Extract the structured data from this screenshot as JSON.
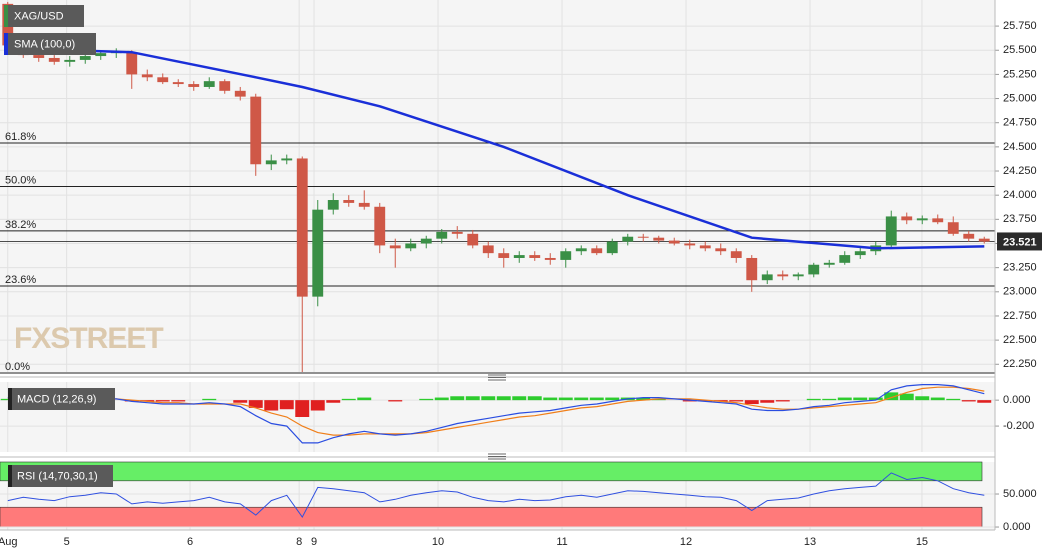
{
  "chart_data": [
    {
      "type": "candlestick",
      "title": "XAG/USD",
      "x": [
        0,
        1,
        2,
        3,
        4,
        5,
        6,
        7,
        8,
        9,
        10,
        11,
        12,
        13,
        14,
        15,
        16,
        17,
        18,
        19,
        20,
        21,
        22,
        23,
        24,
        25,
        26,
        27,
        28,
        29,
        30,
        31,
        32,
        33,
        34,
        35,
        36,
        37,
        38,
        39,
        40,
        41,
        42,
        43,
        44,
        45,
        46,
        47,
        48,
        49,
        50,
        51,
        52,
        53,
        54,
        55,
        56,
        57,
        58,
        59,
        60,
        61,
        62,
        63
      ],
      "open": [
        25.98,
        25.55,
        25.45,
        25.42,
        25.38,
        25.4,
        25.44,
        25.47,
        25.48,
        25.25,
        25.22,
        25.17,
        25.15,
        25.12,
        25.18,
        25.08,
        25.02,
        24.32,
        24.36,
        24.38,
        22.95,
        23.85,
        23.95,
        23.92,
        23.88,
        23.48,
        23.45,
        23.5,
        23.55,
        23.62,
        23.6,
        23.48,
        23.4,
        23.35,
        23.38,
        23.35,
        23.33,
        23.42,
        23.45,
        23.4,
        23.52,
        23.57,
        23.56,
        23.53,
        23.5,
        23.48,
        23.45,
        23.42,
        23.35,
        23.12,
        23.18,
        23.16,
        23.18,
        23.28,
        23.3,
        23.38,
        23.42,
        23.48,
        23.78,
        23.74,
        23.76,
        23.72,
        23.6,
        23.55
      ],
      "high": [
        26.0,
        25.58,
        25.5,
        25.45,
        25.44,
        25.47,
        25.5,
        25.52,
        25.5,
        25.3,
        25.26,
        25.2,
        25.18,
        25.22,
        25.2,
        25.12,
        25.05,
        24.42,
        24.42,
        24.4,
        23.95,
        24.02,
        24.0,
        24.05,
        23.92,
        23.55,
        23.55,
        23.58,
        23.65,
        23.68,
        23.64,
        23.52,
        23.45,
        23.42,
        23.42,
        23.4,
        23.45,
        23.48,
        23.48,
        23.55,
        23.6,
        23.6,
        23.58,
        23.56,
        23.54,
        23.52,
        23.5,
        23.45,
        23.38,
        23.22,
        23.22,
        23.2,
        23.3,
        23.33,
        23.42,
        23.46,
        23.52,
        23.84,
        23.82,
        23.79,
        23.8,
        23.78,
        23.63,
        23.57
      ],
      "low": [
        25.5,
        25.42,
        25.38,
        25.35,
        25.33,
        25.36,
        25.4,
        25.42,
        25.1,
        25.18,
        25.15,
        25.12,
        25.08,
        25.1,
        25.05,
        24.98,
        24.2,
        24.26,
        24.32,
        22.17,
        22.85,
        23.8,
        23.88,
        23.85,
        23.4,
        23.25,
        23.42,
        23.45,
        23.5,
        23.55,
        23.45,
        23.35,
        23.25,
        23.3,
        23.32,
        23.28,
        23.25,
        23.38,
        23.38,
        23.38,
        23.48,
        23.52,
        23.5,
        23.48,
        23.44,
        23.42,
        23.38,
        23.3,
        23.0,
        23.08,
        23.12,
        23.12,
        23.15,
        23.25,
        23.28,
        23.34,
        23.38,
        23.46,
        23.7,
        23.7,
        23.7,
        23.58,
        23.52,
        23.5
      ],
      "close": [
        25.55,
        25.45,
        25.42,
        25.38,
        25.4,
        25.44,
        25.47,
        25.48,
        25.25,
        25.22,
        25.17,
        25.15,
        25.12,
        25.18,
        25.08,
        25.02,
        24.32,
        24.36,
        24.38,
        22.95,
        23.85,
        23.95,
        23.92,
        23.88,
        23.48,
        23.45,
        23.5,
        23.55,
        23.62,
        23.6,
        23.48,
        23.4,
        23.35,
        23.38,
        23.35,
        23.33,
        23.42,
        23.45,
        23.4,
        23.52,
        23.57,
        23.56,
        23.53,
        23.5,
        23.48,
        23.45,
        23.42,
        23.35,
        23.12,
        23.18,
        23.16,
        23.18,
        23.28,
        23.3,
        23.38,
        23.42,
        23.48,
        23.78,
        23.74,
        23.76,
        23.72,
        23.6,
        23.55,
        23.52
      ],
      "up_color": "#3a8f46",
      "down_color": "#cf5847",
      "sma": {
        "name": "SMA (100,0)",
        "color": "#1a2fd8",
        "x": [
          0,
          8,
          16,
          19,
          24,
          32,
          40,
          48,
          56,
          63
        ],
        "values": [
          25.52,
          25.48,
          25.22,
          25.12,
          24.92,
          24.5,
          24.0,
          23.56,
          23.45,
          23.47
        ]
      },
      "fib_levels": [
        {
          "label": "61.8%",
          "price": 24.54
        },
        {
          "label": "50.0%",
          "price": 24.09
        },
        {
          "label": "38.2%",
          "price": 23.63
        },
        {
          "label": "23.6%",
          "price": 23.06
        },
        {
          "label": "0.0%",
          "price": 22.16
        }
      ],
      "last_price": 23.521,
      "watermark": "FXSTREET",
      "xlim": [
        -0.5,
        63.5
      ],
      "ylim": [
        22.17,
        26.02
      ],
      "yticks": [
        {
          "value": 22.25,
          "label": "22.250"
        },
        {
          "value": 22.5,
          "label": "22.500"
        },
        {
          "value": 22.75,
          "label": "22.750"
        },
        {
          "value": 23,
          "label": "23.000"
        },
        {
          "value": 23.25,
          "label": "23.250"
        },
        {
          "value": 23.5,
          "label": "23.500"
        },
        {
          "value": 23.75,
          "label": "23.750"
        },
        {
          "value": 24,
          "label": "24.000"
        },
        {
          "value": 24.25,
          "label": "24.250"
        },
        {
          "value": 24.5,
          "label": "24.500"
        },
        {
          "value": 24.75,
          "label": "24.750"
        },
        {
          "value": 25,
          "label": "25.000"
        },
        {
          "value": 25.25,
          "label": "25.250"
        },
        {
          "value": 25.5,
          "label": "25.500"
        },
        {
          "value": 25.75,
          "label": "25.750"
        }
      ],
      "grid": true
    },
    {
      "type": "macd",
      "title": "MACD (12,26,9)",
      "histogram": {
        "up_color": "#2ecc2e",
        "down_color": "#e02020",
        "values": [
          0.01,
          0.0,
          -0.01,
          -0.01,
          -0.01,
          0.0,
          0.01,
          0.0,
          -0.01,
          -0.01,
          -0.01,
          -0.01,
          0.0,
          0.01,
          0.0,
          -0.02,
          -0.06,
          -0.08,
          -0.07,
          -0.13,
          -0.08,
          -0.02,
          0.01,
          0.02,
          0.0,
          -0.01,
          0.0,
          0.01,
          0.02,
          0.03,
          0.03,
          0.03,
          0.03,
          0.03,
          0.03,
          0.02,
          0.02,
          0.02,
          0.02,
          0.02,
          0.02,
          0.02,
          0.01,
          0.0,
          -0.01,
          -0.01,
          -0.01,
          -0.01,
          -0.03,
          -0.02,
          -0.01,
          0.0,
          0.01,
          0.01,
          0.02,
          0.02,
          0.02,
          0.06,
          0.05,
          0.03,
          0.02,
          0.01,
          -0.01,
          -0.02
        ]
      },
      "macd": {
        "color": "#2a4de0",
        "values": [
          0.02,
          0.01,
          0.0,
          -0.01,
          -0.01,
          0.0,
          0.01,
          0.01,
          -0.01,
          -0.02,
          -0.03,
          -0.03,
          -0.03,
          -0.02,
          -0.03,
          -0.05,
          -0.12,
          -0.18,
          -0.2,
          -0.33,
          -0.33,
          -0.29,
          -0.26,
          -0.24,
          -0.26,
          -0.27,
          -0.26,
          -0.24,
          -0.21,
          -0.18,
          -0.16,
          -0.14,
          -0.12,
          -0.1,
          -0.09,
          -0.08,
          -0.06,
          -0.04,
          -0.03,
          -0.01,
          0.01,
          0.02,
          0.02,
          0.01,
          0.0,
          -0.01,
          -0.02,
          -0.03,
          -0.07,
          -0.08,
          -0.08,
          -0.07,
          -0.05,
          -0.04,
          -0.02,
          -0.01,
          0.0,
          0.08,
          0.11,
          0.12,
          0.12,
          0.11,
          0.08,
          0.05
        ]
      },
      "signal": {
        "color": "#f07f1a",
        "values": [
          0.01,
          0.01,
          0.01,
          0.0,
          0.0,
          0.0,
          0.0,
          0.01,
          0.0,
          -0.01,
          -0.02,
          -0.02,
          -0.03,
          -0.03,
          -0.03,
          -0.03,
          -0.06,
          -0.1,
          -0.13,
          -0.2,
          -0.25,
          -0.27,
          -0.27,
          -0.26,
          -0.26,
          -0.26,
          -0.26,
          -0.25,
          -0.23,
          -0.21,
          -0.19,
          -0.17,
          -0.15,
          -0.13,
          -0.12,
          -0.1,
          -0.08,
          -0.06,
          -0.05,
          -0.03,
          -0.01,
          0.0,
          0.01,
          0.01,
          0.01,
          0.0,
          -0.01,
          -0.02,
          -0.04,
          -0.06,
          -0.07,
          -0.07,
          -0.06,
          -0.05,
          -0.04,
          -0.03,
          -0.02,
          0.02,
          0.06,
          0.09,
          0.1,
          0.1,
          0.09,
          0.07
        ]
      },
      "ylim": [
        -0.4,
        0.14
      ],
      "yticks": [
        {
          "value": 0,
          "label": "0.000"
        },
        {
          "value": -0.2,
          "label": "-0.200"
        }
      ]
    },
    {
      "type": "line",
      "title": "RSI (14,70,30,1)",
      "color": "#3050e0",
      "values": [
        40,
        45,
        42,
        40,
        46,
        48,
        52,
        50,
        35,
        38,
        36,
        38,
        40,
        45,
        38,
        35,
        18,
        40,
        48,
        15,
        60,
        58,
        55,
        52,
        38,
        42,
        48,
        52,
        55,
        53,
        45,
        40,
        38,
        42,
        40,
        41,
        46,
        48,
        45,
        50,
        55,
        54,
        52,
        50,
        48,
        46,
        45,
        40,
        25,
        40,
        42,
        44,
        50,
        55,
        58,
        60,
        62,
        82,
        72,
        75,
        70,
        58,
        52,
        48
      ],
      "overbought": 70,
      "oversold": 30,
      "overbought_color": "#66ee66",
      "oversold_color": "#ff7a7a",
      "ylim": [
        -4.5,
        98.5
      ],
      "yticks": [
        {
          "value": 50,
          "label": "50.000"
        },
        {
          "value": 0,
          "label": "0.000"
        }
      ],
      "xticks": [
        {
          "value": 0,
          "label": "Aug"
        },
        {
          "value": 3.8,
          "label": "5"
        },
        {
          "value": 11.76,
          "label": "6"
        },
        {
          "value": 18.8,
          "label": "8"
        },
        {
          "value": 19.76,
          "label": "9"
        },
        {
          "value": 27.76,
          "label": "10"
        },
        {
          "value": 35.76,
          "label": "11"
        },
        {
          "value": 43.76,
          "label": "12"
        },
        {
          "value": 51.76,
          "label": "13"
        },
        {
          "value": 58.98,
          "label": "15"
        }
      ]
    }
  ]
}
